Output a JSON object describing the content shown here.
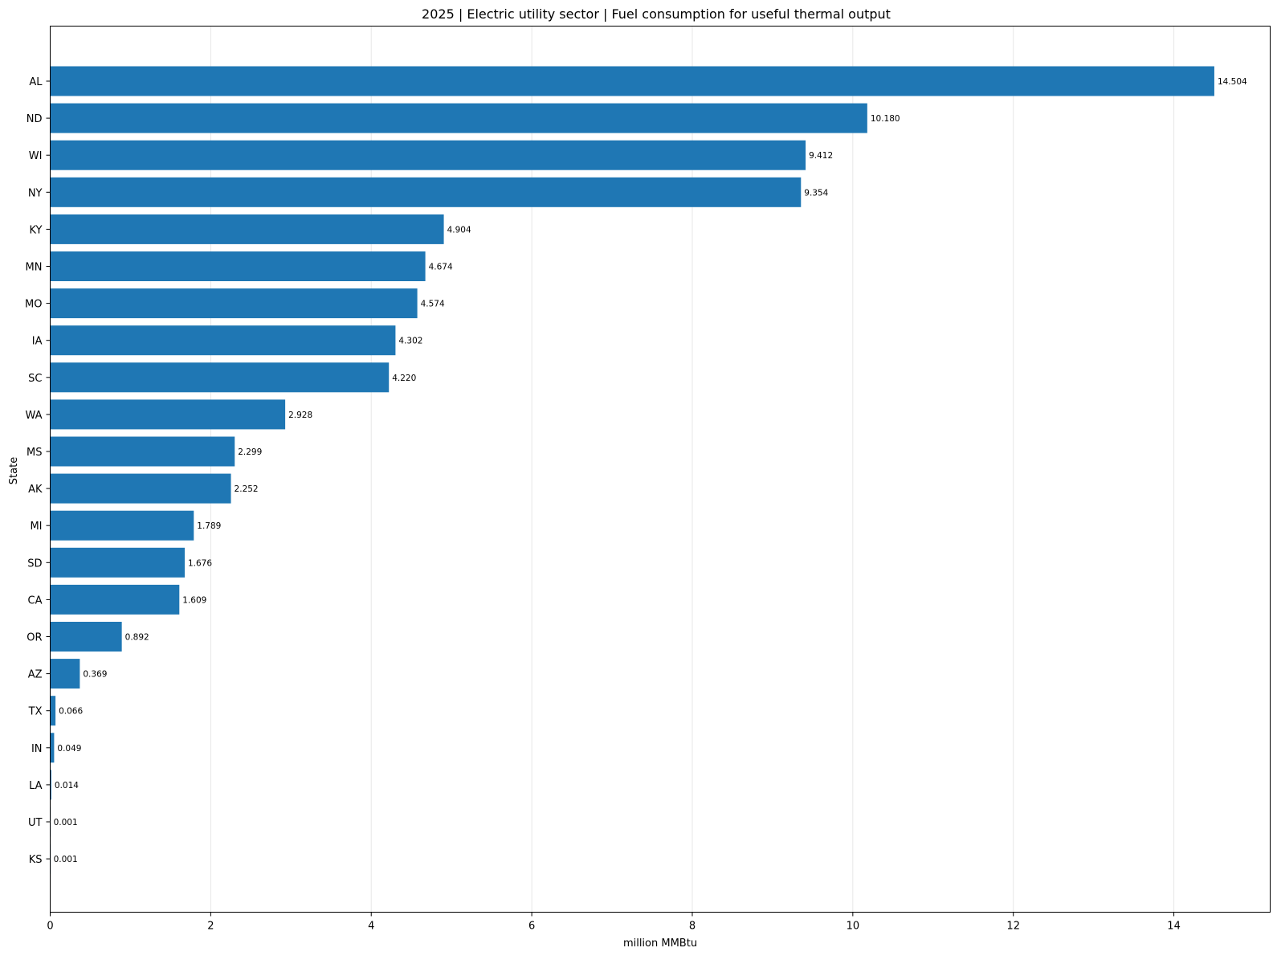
{
  "chart_data": {
    "type": "bar",
    "orientation": "horizontal",
    "title": "2025 | Electric utility sector | Fuel consumption for useful thermal output",
    "xlabel": "million MMBtu",
    "ylabel": "State",
    "xlim": [
      0,
      15.2
    ],
    "xticks": [
      0,
      2,
      4,
      6,
      8,
      10,
      12,
      14
    ],
    "grid": "vertical",
    "bar_color": "#1f77b4",
    "categories": [
      "AL",
      "ND",
      "WI",
      "NY",
      "KY",
      "MN",
      "MO",
      "IA",
      "SC",
      "WA",
      "MS",
      "AK",
      "MI",
      "SD",
      "CA",
      "OR",
      "AZ",
      "TX",
      "IN",
      "LA",
      "UT",
      "KS"
    ],
    "values": [
      14.504,
      10.18,
      9.412,
      9.354,
      4.904,
      4.674,
      4.574,
      4.302,
      4.22,
      2.928,
      2.299,
      2.252,
      1.789,
      1.676,
      1.609,
      0.892,
      0.369,
      0.066,
      0.049,
      0.014,
      0.001,
      0.001
    ],
    "value_labels": [
      "14.504",
      "10.180",
      "9.412",
      "9.354",
      "4.904",
      "4.674",
      "4.574",
      "4.302",
      "4.220",
      "2.928",
      "2.299",
      "2.252",
      "1.789",
      "1.676",
      "1.609",
      "0.892",
      "0.369",
      "0.066",
      "0.049",
      "0.014",
      "0.001",
      "0.001"
    ]
  }
}
